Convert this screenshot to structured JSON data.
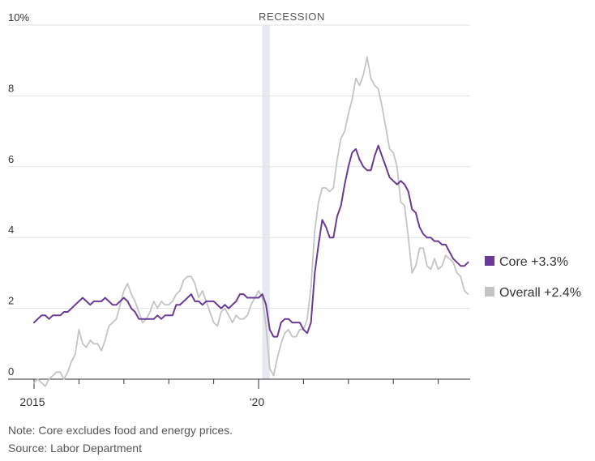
{
  "chart_data": {
    "type": "line",
    "ylabel": "",
    "y_ticks": [
      "10%",
      "8",
      "6",
      "4",
      "2",
      "0"
    ],
    "ylim": [
      0,
      10
    ],
    "x_tick_labels": [
      {
        "year": 2015,
        "label": "2015"
      },
      {
        "year": 2020,
        "label": "'20"
      }
    ],
    "xlim": [
      "2015-01",
      "2024-06"
    ],
    "grid": true,
    "recession": {
      "label": "RECESSION",
      "start": "2020-02",
      "end": "2020-04"
    },
    "colors": {
      "core": "#6b3a96",
      "overall": "#c4c4c4",
      "recession": "#e6e9ef",
      "grid": "#e2e2e2",
      "axis": "#333333"
    },
    "start_month": "2015-01",
    "series": [
      {
        "key": "core",
        "name": "Core",
        "end_label": "+3.3%",
        "values": [
          1.6,
          1.7,
          1.8,
          1.8,
          1.7,
          1.8,
          1.8,
          1.8,
          1.9,
          1.9,
          2.0,
          2.1,
          2.2,
          2.3,
          2.2,
          2.1,
          2.2,
          2.2,
          2.2,
          2.3,
          2.2,
          2.1,
          2.1,
          2.2,
          2.3,
          2.2,
          2.0,
          1.9,
          1.7,
          1.7,
          1.7,
          1.7,
          1.7,
          1.8,
          1.7,
          1.8,
          1.8,
          1.8,
          2.1,
          2.1,
          2.2,
          2.3,
          2.4,
          2.2,
          2.2,
          2.1,
          2.2,
          2.2,
          2.2,
          2.1,
          2.0,
          2.1,
          2.0,
          2.1,
          2.2,
          2.4,
          2.4,
          2.3,
          2.3,
          2.3,
          2.3,
          2.4,
          2.1,
          1.4,
          1.2,
          1.2,
          1.6,
          1.7,
          1.7,
          1.6,
          1.6,
          1.6,
          1.4,
          1.3,
          1.6,
          3.0,
          3.8,
          4.5,
          4.3,
          4.0,
          4.0,
          4.6,
          4.9,
          5.5,
          6.0,
          6.4,
          6.5,
          6.2,
          6.0,
          5.9,
          5.9,
          6.3,
          6.6,
          6.3,
          6.0,
          5.7,
          5.6,
          5.5,
          5.6,
          5.5,
          5.3,
          4.8,
          4.7,
          4.3,
          4.1,
          4.0,
          4.0,
          3.9,
          3.9,
          3.8,
          3.8,
          3.6,
          3.4,
          3.3,
          3.2,
          3.2,
          3.3
        ]
      },
      {
        "key": "overall",
        "name": "Overall",
        "end_label": "+2.4%",
        "values": [
          -0.1,
          0.0,
          -0.1,
          -0.2,
          0.0,
          0.1,
          0.2,
          0.2,
          0.0,
          0.2,
          0.5,
          0.7,
          1.4,
          1.0,
          0.9,
          1.1,
          1.0,
          1.0,
          0.8,
          1.1,
          1.5,
          1.6,
          1.7,
          2.1,
          2.5,
          2.7,
          2.4,
          2.2,
          1.9,
          1.6,
          1.7,
          1.9,
          2.2,
          2.0,
          2.2,
          2.1,
          2.1,
          2.2,
          2.4,
          2.5,
          2.8,
          2.9,
          2.9,
          2.7,
          2.3,
          2.5,
          2.2,
          1.9,
          1.6,
          1.5,
          1.9,
          2.0,
          1.8,
          1.6,
          1.8,
          1.7,
          1.7,
          1.8,
          2.1,
          2.3,
          2.5,
          2.3,
          1.5,
          0.3,
          0.1,
          0.6,
          1.0,
          1.3,
          1.4,
          1.2,
          1.2,
          1.4,
          1.4,
          1.7,
          2.6,
          4.2,
          5.0,
          5.4,
          5.4,
          5.3,
          5.4,
          6.2,
          6.8,
          7.0,
          7.5,
          7.9,
          8.5,
          8.3,
          8.6,
          9.1,
          8.5,
          8.3,
          8.2,
          7.7,
          7.1,
          6.5,
          6.4,
          6.0,
          5.0,
          4.9,
          4.0,
          3.0,
          3.2,
          3.7,
          3.7,
          3.2,
          3.1,
          3.4,
          3.1,
          3.2,
          3.5,
          3.4,
          3.3,
          3.0,
          2.9,
          2.5,
          2.4
        ]
      }
    ]
  },
  "note": "Note: Core excludes food and energy prices.",
  "source": "Source: Labor Department"
}
